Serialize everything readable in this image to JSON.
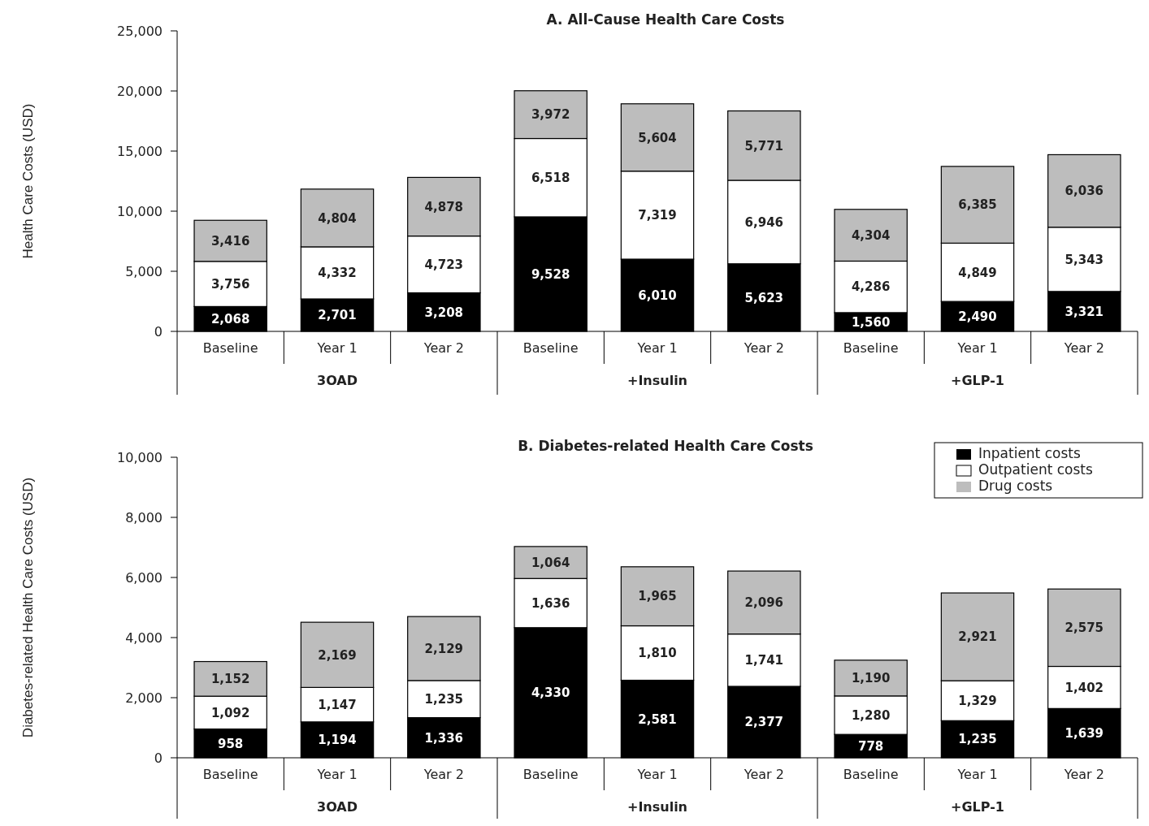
{
  "chart_data": [
    {
      "type": "bar",
      "stacked": true,
      "title": "A. All-Cause Health Care Costs",
      "ylabel": "Health Care Costs (USD)",
      "categories": [
        "Baseline",
        "Year 1",
        "Year 2",
        "Baseline",
        "Year 1",
        "Year 2",
        "Baseline",
        "Year 1",
        "Year 2"
      ],
      "series": [
        {
          "color": "#000000",
          "values": [
            2068,
            2701,
            3208,
            9528,
            6010,
            5623,
            1560,
            2490,
            3321
          ],
          "value_labels": [
            "2,068",
            "2,701",
            "3,208",
            "9,528",
            "6,010",
            "5,623",
            "1,560",
            "2,490",
            "3,321"
          ]
        },
        {
          "color": "#ffffff",
          "values": [
            3756,
            4332,
            4723,
            6518,
            7319,
            6946,
            4286,
            4849,
            5343
          ],
          "value_labels": [
            "3,756",
            "4,332",
            "4,723",
            "6,518",
            "7,319",
            "6,946",
            "4,286",
            "4,849",
            "5,343"
          ]
        },
        {
          "color": "#bdbdbd",
          "values": [
            3416,
            4804,
            4878,
            3972,
            5604,
            5771,
            4304,
            6385,
            6036
          ],
          "value_labels": [
            "3,416",
            "4,804",
            "4,878",
            "3,972",
            "5,604",
            "5,771",
            "4,304",
            "6,385",
            "6,036"
          ]
        }
      ],
      "ylim": [
        0,
        25000
      ],
      "yticks": [
        {
          "value": 0,
          "label": "0"
        },
        {
          "value": 5000,
          "label": "5,000"
        },
        {
          "value": 10000,
          "label": "10,000"
        },
        {
          "value": 15000,
          "label": "15,000"
        },
        {
          "value": 20000,
          "label": "20,000"
        },
        {
          "value": 25000,
          "label": "25,000"
        }
      ],
      "annotations": [
        "3OAD",
        "+Insulin",
        "+GLP-1"
      ],
      "legend": false
    },
    {
      "type": "bar",
      "stacked": true,
      "title": "B. Diabetes-related Health Care Costs",
      "ylabel": "Diabetes-related Health Care Costs (USD)",
      "categories": [
        "Baseline",
        "Year 1",
        "Year 2",
        "Baseline",
        "Year 1",
        "Year 2",
        "Baseline",
        "Year 1",
        "Year 2"
      ],
      "series": [
        {
          "name": "Inpatient costs",
          "color": "#000000",
          "values": [
            958,
            1194,
            1336,
            4330,
            2581,
            2377,
            778,
            1235,
            1639
          ],
          "value_labels": [
            "958",
            "1,194",
            "1,336",
            "4,330",
            "2,581",
            "2,377",
            "778",
            "1,235",
            "1,639"
          ]
        },
        {
          "name": "Outpatient costs",
          "color": "#ffffff",
          "values": [
            1092,
            1147,
            1235,
            1636,
            1810,
            1741,
            1280,
            1329,
            1402
          ],
          "value_labels": [
            "1,092",
            "1,147",
            "1,235",
            "1,636",
            "1,810",
            "1,741",
            "1,280",
            "1,329",
            "1,402"
          ]
        },
        {
          "name": "Drug costs",
          "color": "#bdbdbd",
          "values": [
            1152,
            2169,
            2129,
            1064,
            1965,
            2096,
            1190,
            2921,
            2575
          ],
          "value_labels": [
            "1,152",
            "2,169",
            "2,129",
            "1,064",
            "1,965",
            "2,096",
            "1,190",
            "2,921",
            "2,575"
          ]
        }
      ],
      "ylim": [
        0,
        10000
      ],
      "yticks": [
        {
          "value": 0,
          "label": "0"
        },
        {
          "value": 2000,
          "label": "2,000"
        },
        {
          "value": 4000,
          "label": "4,000"
        },
        {
          "value": 6000,
          "label": "6,000"
        },
        {
          "value": 8000,
          "label": "8,000"
        },
        {
          "value": 10000,
          "label": "10,000"
        }
      ],
      "annotations": [
        "3OAD",
        "+Insulin",
        "+GLP-1"
      ],
      "legend": "top right"
    }
  ]
}
